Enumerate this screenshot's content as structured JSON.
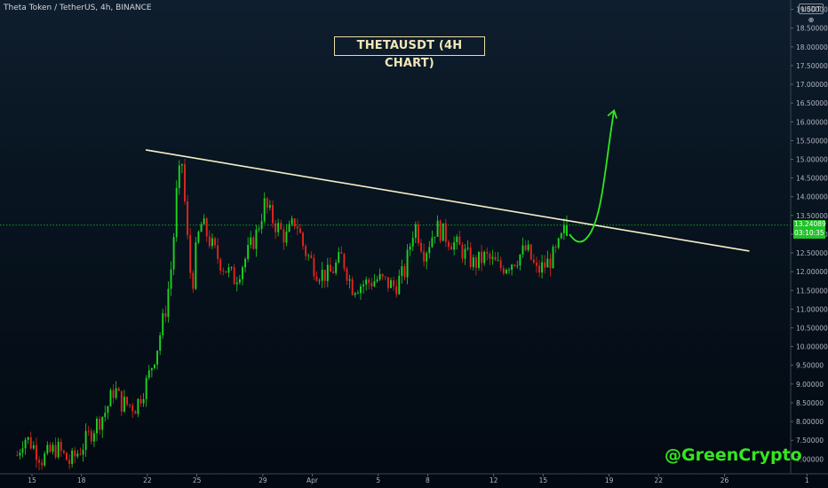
{
  "header": {
    "symbol_line": "Theta Token / TetherUS, 4h, BINANCE",
    "currency_label": "USDT ⊕"
  },
  "title_box": "THETAUSDT (4H CHART)",
  "last_price": {
    "value": "13.24089",
    "countdown": "03:10:35"
  },
  "watermark": "@GreenCrypto",
  "colors": {
    "up_candle": "#1fd11f",
    "down_candle": "#e0261d",
    "trendline": "#f6f0c8",
    "arrow": "#30e81c",
    "price_line": "#22c22a",
    "title_border": "#e9dca5"
  },
  "chart_data": {
    "type": "candlestick",
    "title": "THETAUSDT (4H CHART)",
    "xlabel": "",
    "ylabel": "",
    "y_axis_side": "right",
    "ylim": [
      6.75,
      19.2
    ],
    "y_ticks": [
      "7.00000",
      "7.50000",
      "8.00000",
      "8.50000",
      "9.00000",
      "9.50000",
      "10.00000",
      "10.50000",
      "11.00000",
      "11.50000",
      "12.00000",
      "12.50000",
      "13.00000",
      "13.50000",
      "14.00000",
      "14.50000",
      "15.00000",
      "15.50000",
      "16.00000",
      "16.50000",
      "17.00000",
      "17.50000",
      "18.00000",
      "18.50000",
      "19.00000"
    ],
    "x_ticks": [
      "15",
      "18",
      "22",
      "25",
      "29",
      "Apr",
      "5",
      "8",
      "12",
      "15",
      "19",
      "22",
      "26",
      "1"
    ],
    "x_tick_days": [
      15,
      18,
      22,
      25,
      29,
      32,
      36,
      39,
      43,
      46,
      50,
      53,
      57,
      62
    ],
    "x_tick_note": "x values are day numbers counted from March 1 (Apr = day 32)",
    "last_price": 13.24089,
    "candles": [],
    "approx_close_path": [
      {
        "day": 14.1,
        "close": 7.1
      },
      {
        "day": 14.5,
        "close": 7.6
      },
      {
        "day": 15.0,
        "close": 7.4
      },
      {
        "day": 15.6,
        "close": 7.0
      },
      {
        "day": 16.5,
        "close": 7.3
      },
      {
        "day": 17.3,
        "close": 6.9
      },
      {
        "day": 18.0,
        "close": 7.3
      },
      {
        "day": 18.7,
        "close": 7.8
      },
      {
        "day": 19.5,
        "close": 8.3
      },
      {
        "day": 20.0,
        "close": 8.9
      },
      {
        "day": 20.4,
        "close": 8.5
      },
      {
        "day": 21.3,
        "close": 8.4
      },
      {
        "day": 22.0,
        "close": 9.1
      },
      {
        "day": 22.6,
        "close": 10.0
      },
      {
        "day": 23.1,
        "close": 11.0
      },
      {
        "day": 23.5,
        "close": 12.3
      },
      {
        "day": 23.8,
        "close": 14.3
      },
      {
        "day": 24.1,
        "close": 14.9
      },
      {
        "day": 24.4,
        "close": 13.0
      },
      {
        "day": 24.7,
        "close": 11.5
      },
      {
        "day": 25.0,
        "close": 12.8
      },
      {
        "day": 25.3,
        "close": 13.3
      },
      {
        "day": 26.0,
        "close": 12.6
      },
      {
        "day": 26.5,
        "close": 12.2
      },
      {
        "day": 27.3,
        "close": 11.8
      },
      {
        "day": 28.0,
        "close": 12.4
      },
      {
        "day": 28.6,
        "close": 13.0
      },
      {
        "day": 29.1,
        "close": 13.8
      },
      {
        "day": 29.7,
        "close": 13.3
      },
      {
        "day": 30.4,
        "close": 12.9
      },
      {
        "day": 31.0,
        "close": 13.4
      },
      {
        "day": 31.5,
        "close": 12.6
      },
      {
        "day": 32.3,
        "close": 12.0
      },
      {
        "day": 33.0,
        "close": 11.9
      },
      {
        "day": 33.8,
        "close": 12.4
      },
      {
        "day": 34.4,
        "close": 11.6
      },
      {
        "day": 35.3,
        "close": 11.7
      },
      {
        "day": 36.0,
        "close": 11.8
      },
      {
        "day": 37.0,
        "close": 11.6
      },
      {
        "day": 37.6,
        "close": 12.0
      },
      {
        "day": 38.2,
        "close": 13.3
      },
      {
        "day": 38.8,
        "close": 12.5
      },
      {
        "day": 39.5,
        "close": 13.2
      },
      {
        "day": 40.2,
        "close": 12.9
      },
      {
        "day": 41.0,
        "close": 12.6
      },
      {
        "day": 41.8,
        "close": 12.2
      },
      {
        "day": 42.5,
        "close": 12.4
      },
      {
        "day": 43.4,
        "close": 12.1
      },
      {
        "day": 44.2,
        "close": 12.3
      },
      {
        "day": 45.0,
        "close": 12.6
      },
      {
        "day": 45.6,
        "close": 12.0
      },
      {
        "day": 46.2,
        "close": 12.2
      },
      {
        "day": 46.8,
        "close": 12.5
      },
      {
        "day": 47.3,
        "close": 13.1
      },
      {
        "day": 47.5,
        "close": 13.24
      }
    ],
    "annotations": {
      "trendline": {
        "from": {
          "day": 21.9,
          "price": 15.25
        },
        "to": {
          "day": 58.5,
          "price": 12.55
        }
      },
      "projection_arrow": {
        "from": {
          "day": 47.6,
          "price": 13.0
        },
        "to": {
          "day": 48.2,
          "price": 12.95
        },
        "peak": {
          "day": 50.3,
          "price": 16.3
        }
      }
    }
  }
}
